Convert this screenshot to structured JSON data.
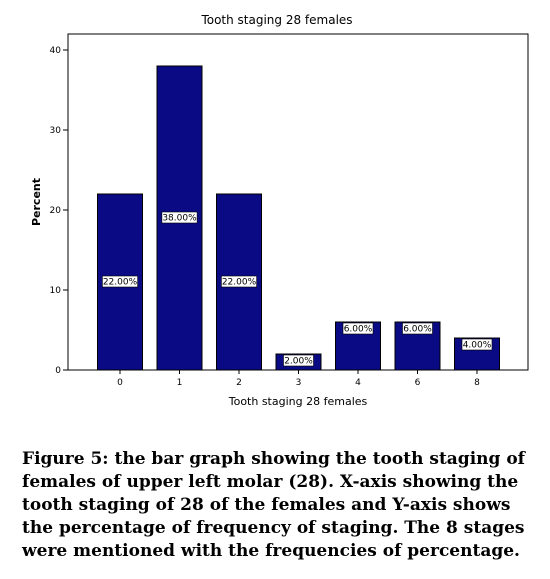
{
  "chart_data": {
    "type": "bar",
    "title": "Tooth staging 28 females",
    "xlabel": "Tooth staging 28 females",
    "ylabel": "Percent",
    "categories": [
      "0",
      "1",
      "2",
      "3",
      "4",
      "6",
      "8"
    ],
    "values": [
      22,
      38,
      22,
      2,
      6,
      6,
      4
    ],
    "data_labels": [
      "22.00%",
      "38.00%",
      "22.00%",
      "2.00%",
      "6.00%",
      "6.00%",
      "4.00%"
    ],
    "ylim": [
      0,
      42
    ],
    "yticks": [
      0,
      10,
      20,
      30,
      40
    ],
    "bar_color": "#0a0a84",
    "grid": false
  },
  "caption": "Figure 5: the bar graph showing the tooth staging of females of upper left molar (28). X-axis showing the tooth staging of 28 of the females and Y-axis shows the percentage of frequency of staging. The 8 stages were mentioned with the frequencies of percentage."
}
